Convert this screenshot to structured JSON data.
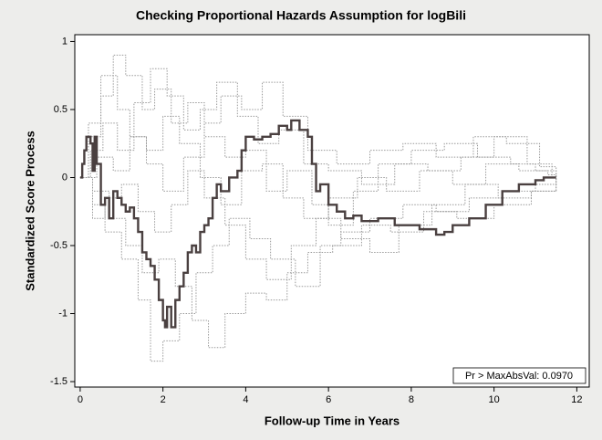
{
  "chart_data": {
    "type": "step",
    "title": "Checking Proportional Hazards Assumption for  logBili",
    "xlabel": "Follow-up Time in Years",
    "ylabel": "Standardized Score Process",
    "annotation": "Pr > MaxAbsVal: 0.0970",
    "xlim": [
      -0.13,
      12.3
    ],
    "ylim": [
      -1.54,
      1.05
    ],
    "xticks": [
      0,
      2,
      4,
      6,
      8,
      10,
      12
    ],
    "yticks": [
      -1.5,
      -1,
      -0.5,
      0,
      0.5,
      1
    ],
    "grid": false,
    "series": [
      {
        "color": "#9a9a9a",
        "style": "dotted",
        "x": [
          0,
          0.2,
          0.5,
          0.8,
          1.1,
          1.5,
          1.8,
          2.2,
          2.6,
          3.0,
          3.5,
          4.0,
          4.5,
          5.0,
          5.6,
          6.0,
          6.6,
          7.2,
          8.0,
          8.8,
          9.6,
          10.4,
          11.0,
          11.5
        ],
        "values": [
          0,
          0.3,
          0.6,
          0.9,
          0.75,
          0.5,
          0.65,
          0.4,
          0.55,
          0.3,
          0.15,
          0.2,
          -0.1,
          0.05,
          -0.2,
          -0.35,
          -0.1,
          0.1,
          0.2,
          0.25,
          0.15,
          0.1,
          0.05,
          0
        ]
      },
      {
        "color": "#9a9a9a",
        "style": "dotted",
        "x": [
          0,
          0.3,
          0.6,
          1.0,
          1.4,
          1.7,
          2.0,
          2.4,
          2.8,
          3.2,
          3.6,
          4.1,
          4.6,
          5.2,
          5.8,
          6.3,
          7.0,
          7.8,
          8.6,
          9.4,
          10.2,
          11.0,
          11.5
        ],
        "values": [
          0,
          -0.2,
          -0.4,
          -0.6,
          -0.9,
          -1.35,
          -1.2,
          -1.0,
          -0.7,
          -0.5,
          -0.3,
          -0.45,
          -0.6,
          -0.8,
          -0.5,
          -0.4,
          -0.3,
          -0.2,
          -0.25,
          -0.15,
          -0.1,
          -0.05,
          0
        ]
      },
      {
        "color": "#9a9a9a",
        "style": "dotted",
        "x": [
          0,
          0.25,
          0.55,
          0.9,
          1.3,
          1.7,
          2.1,
          2.5,
          2.9,
          3.3,
          3.8,
          4.3,
          4.8,
          5.4,
          6.0,
          6.8,
          7.6,
          8.4,
          9.2,
          10.0,
          10.8,
          11.4
        ],
        "values": [
          0,
          0.2,
          0.4,
          0.2,
          0.55,
          0.8,
          0.6,
          0.35,
          0.5,
          0.7,
          0.45,
          0.25,
          0.35,
          0.1,
          0.05,
          -0.05,
          0.1,
          0.05,
          0.15,
          0.3,
          0.1,
          0
        ]
      },
      {
        "color": "#9a9a9a",
        "style": "dotted",
        "x": [
          0,
          0.3,
          0.7,
          1.1,
          1.5,
          1.9,
          2.3,
          2.7,
          3.1,
          3.5,
          4.0,
          4.5,
          5.0,
          5.5,
          6.1,
          6.8,
          7.5,
          8.3,
          9.1,
          10.0,
          10.9,
          11.5
        ],
        "values": [
          0,
          -0.1,
          -0.3,
          -0.5,
          -0.7,
          -0.6,
          -0.8,
          -1.05,
          -1.25,
          -1.0,
          -0.85,
          -0.9,
          -0.7,
          -0.55,
          -0.5,
          -0.35,
          -0.4,
          -0.25,
          -0.3,
          -0.2,
          -0.1,
          0
        ]
      },
      {
        "color": "#9a9a9a",
        "style": "dotted",
        "x": [
          0,
          0.2,
          0.5,
          0.9,
          1.2,
          1.6,
          2.0,
          2.5,
          3.0,
          3.4,
          3.9,
          4.4,
          4.9,
          5.5,
          6.2,
          7.0,
          7.8,
          8.6,
          9.5,
          10.3,
          11.1,
          11.5
        ],
        "values": [
          0,
          0.4,
          0.75,
          0.5,
          0.3,
          0.1,
          -0.1,
          0.15,
          0.4,
          0.6,
          0.5,
          0.7,
          0.45,
          0.2,
          0.1,
          0.2,
          0.25,
          0.15,
          0.3,
          0.25,
          0.08,
          0
        ]
      },
      {
        "color": "#9a9a9a",
        "style": "dotted",
        "x": [
          0,
          0.3,
          0.6,
          1.0,
          1.4,
          1.8,
          2.2,
          2.6,
          3.0,
          3.5,
          4.0,
          4.5,
          5.1,
          5.7,
          6.3,
          7.0,
          7.7,
          8.5,
          9.3,
          10.1,
          10.9,
          11.5
        ],
        "values": [
          0,
          -0.3,
          -0.15,
          -0.05,
          -0.25,
          -0.4,
          -0.2,
          0.05,
          -0.15,
          -0.35,
          -0.6,
          -0.75,
          -0.5,
          -0.3,
          -0.45,
          -0.55,
          -0.35,
          -0.2,
          -0.05,
          -0.15,
          -0.1,
          0
        ]
      },
      {
        "color": "#9a9a9a",
        "style": "dotted",
        "x": [
          0,
          0.4,
          0.8,
          1.2,
          1.6,
          2.0,
          2.4,
          2.9,
          3.4,
          3.9,
          4.4,
          4.9,
          5.4,
          6.0,
          6.7,
          7.4,
          8.2,
          9.0,
          9.8,
          10.6,
          11.3,
          11.5
        ],
        "values": [
          0,
          0.15,
          0.05,
          0.3,
          0.2,
          0.45,
          0.25,
          0.0,
          -0.2,
          0.05,
          0.1,
          -0.15,
          -0.3,
          -0.15,
          0.0,
          -0.1,
          0.05,
          -0.05,
          0.1,
          0.05,
          0.02,
          0
        ]
      },
      {
        "color": "#4a4040",
        "style": "solid",
        "x": [
          0,
          0.05,
          0.1,
          0.15,
          0.25,
          0.3,
          0.35,
          0.4,
          0.5,
          0.6,
          0.7,
          0.8,
          0.9,
          1.0,
          1.1,
          1.2,
          1.3,
          1.4,
          1.5,
          1.6,
          1.7,
          1.8,
          1.9,
          2.0,
          2.05,
          2.1,
          2.2,
          2.3,
          2.4,
          2.5,
          2.6,
          2.7,
          2.8,
          2.9,
          3.0,
          3.1,
          3.2,
          3.3,
          3.4,
          3.6,
          3.8,
          3.9,
          4.0,
          4.2,
          4.4,
          4.6,
          4.8,
          5.0,
          5.1,
          5.3,
          5.5,
          5.6,
          5.7,
          5.8,
          6.0,
          6.2,
          6.4,
          6.6,
          6.8,
          7.2,
          7.6,
          8.2,
          8.6,
          8.8,
          9.0,
          9.4,
          9.8,
          10.2,
          10.6,
          11.0,
          11.2,
          11.5
        ],
        "values": [
          0,
          0.1,
          0.2,
          0.3,
          0.25,
          0.05,
          0.3,
          0.1,
          -0.2,
          -0.15,
          -0.3,
          -0.1,
          -0.15,
          -0.2,
          -0.25,
          -0.22,
          -0.3,
          -0.4,
          -0.55,
          -0.6,
          -0.65,
          -0.75,
          -0.9,
          -1.05,
          -1.1,
          -0.95,
          -1.1,
          -0.9,
          -0.8,
          -0.7,
          -0.55,
          -0.5,
          -0.55,
          -0.4,
          -0.35,
          -0.3,
          -0.15,
          -0.05,
          -0.1,
          0,
          0.05,
          0.2,
          0.3,
          0.28,
          0.3,
          0.32,
          0.38,
          0.35,
          0.42,
          0.35,
          0.3,
          0.1,
          -0.1,
          -0.05,
          -0.2,
          -0.25,
          -0.3,
          -0.28,
          -0.32,
          -0.3,
          -0.35,
          -0.38,
          -0.42,
          -0.4,
          -0.35,
          -0.3,
          -0.2,
          -0.1,
          -0.05,
          -0.02,
          0,
          0
        ]
      }
    ]
  }
}
